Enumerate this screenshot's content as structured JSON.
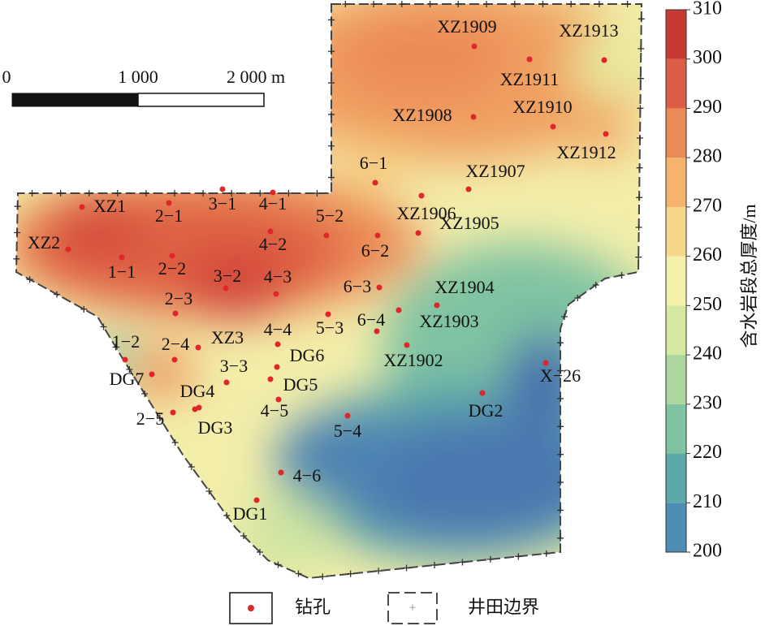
{
  "scale_bar": {
    "labels": [
      "0",
      "1 000",
      "2 000 m"
    ]
  },
  "colorbar": {
    "title": "含水岩段总厚度/m",
    "range": [
      200,
      310
    ],
    "ticks": [
      200,
      210,
      220,
      230,
      240,
      250,
      260,
      270,
      280,
      290,
      300,
      310
    ],
    "colors": [
      "#4a70ae",
      "#4d8db3",
      "#5ba9a9",
      "#7fc3a2",
      "#acd69e",
      "#d5e9a1",
      "#f4f1ab",
      "#f7d88b",
      "#f4b46d",
      "#ec8a57",
      "#dd5e44",
      "#c73a33"
    ]
  },
  "boreholes": [
    "XZ1909",
    "XZ1913",
    "XZ1911",
    "XZ1908",
    "XZ1910",
    "XZ1912",
    "6−1",
    "XZ1907",
    "XZ1906",
    "XZ1905",
    "XZ1",
    "2−1",
    "3−1",
    "4−1",
    "5−2",
    "6−2",
    "4−2",
    "XZ2",
    "1−1",
    "2−2",
    "3−2",
    "4−3",
    "2−3",
    "6−3",
    "XZ1904",
    "5−3",
    "6−4",
    "XZ1903",
    "1−2",
    "2−4",
    "XZ3",
    "4−4",
    "3−3",
    "DG6",
    "XZ1902",
    "X−26",
    "DG7",
    "DG4",
    "DG5",
    "4−5",
    "DG2",
    "2−5",
    "DG3",
    "5−4",
    "4−6",
    "DG1"
  ],
  "legend": {
    "borehole": "钻孔",
    "boundary": "井田边界"
  }
}
